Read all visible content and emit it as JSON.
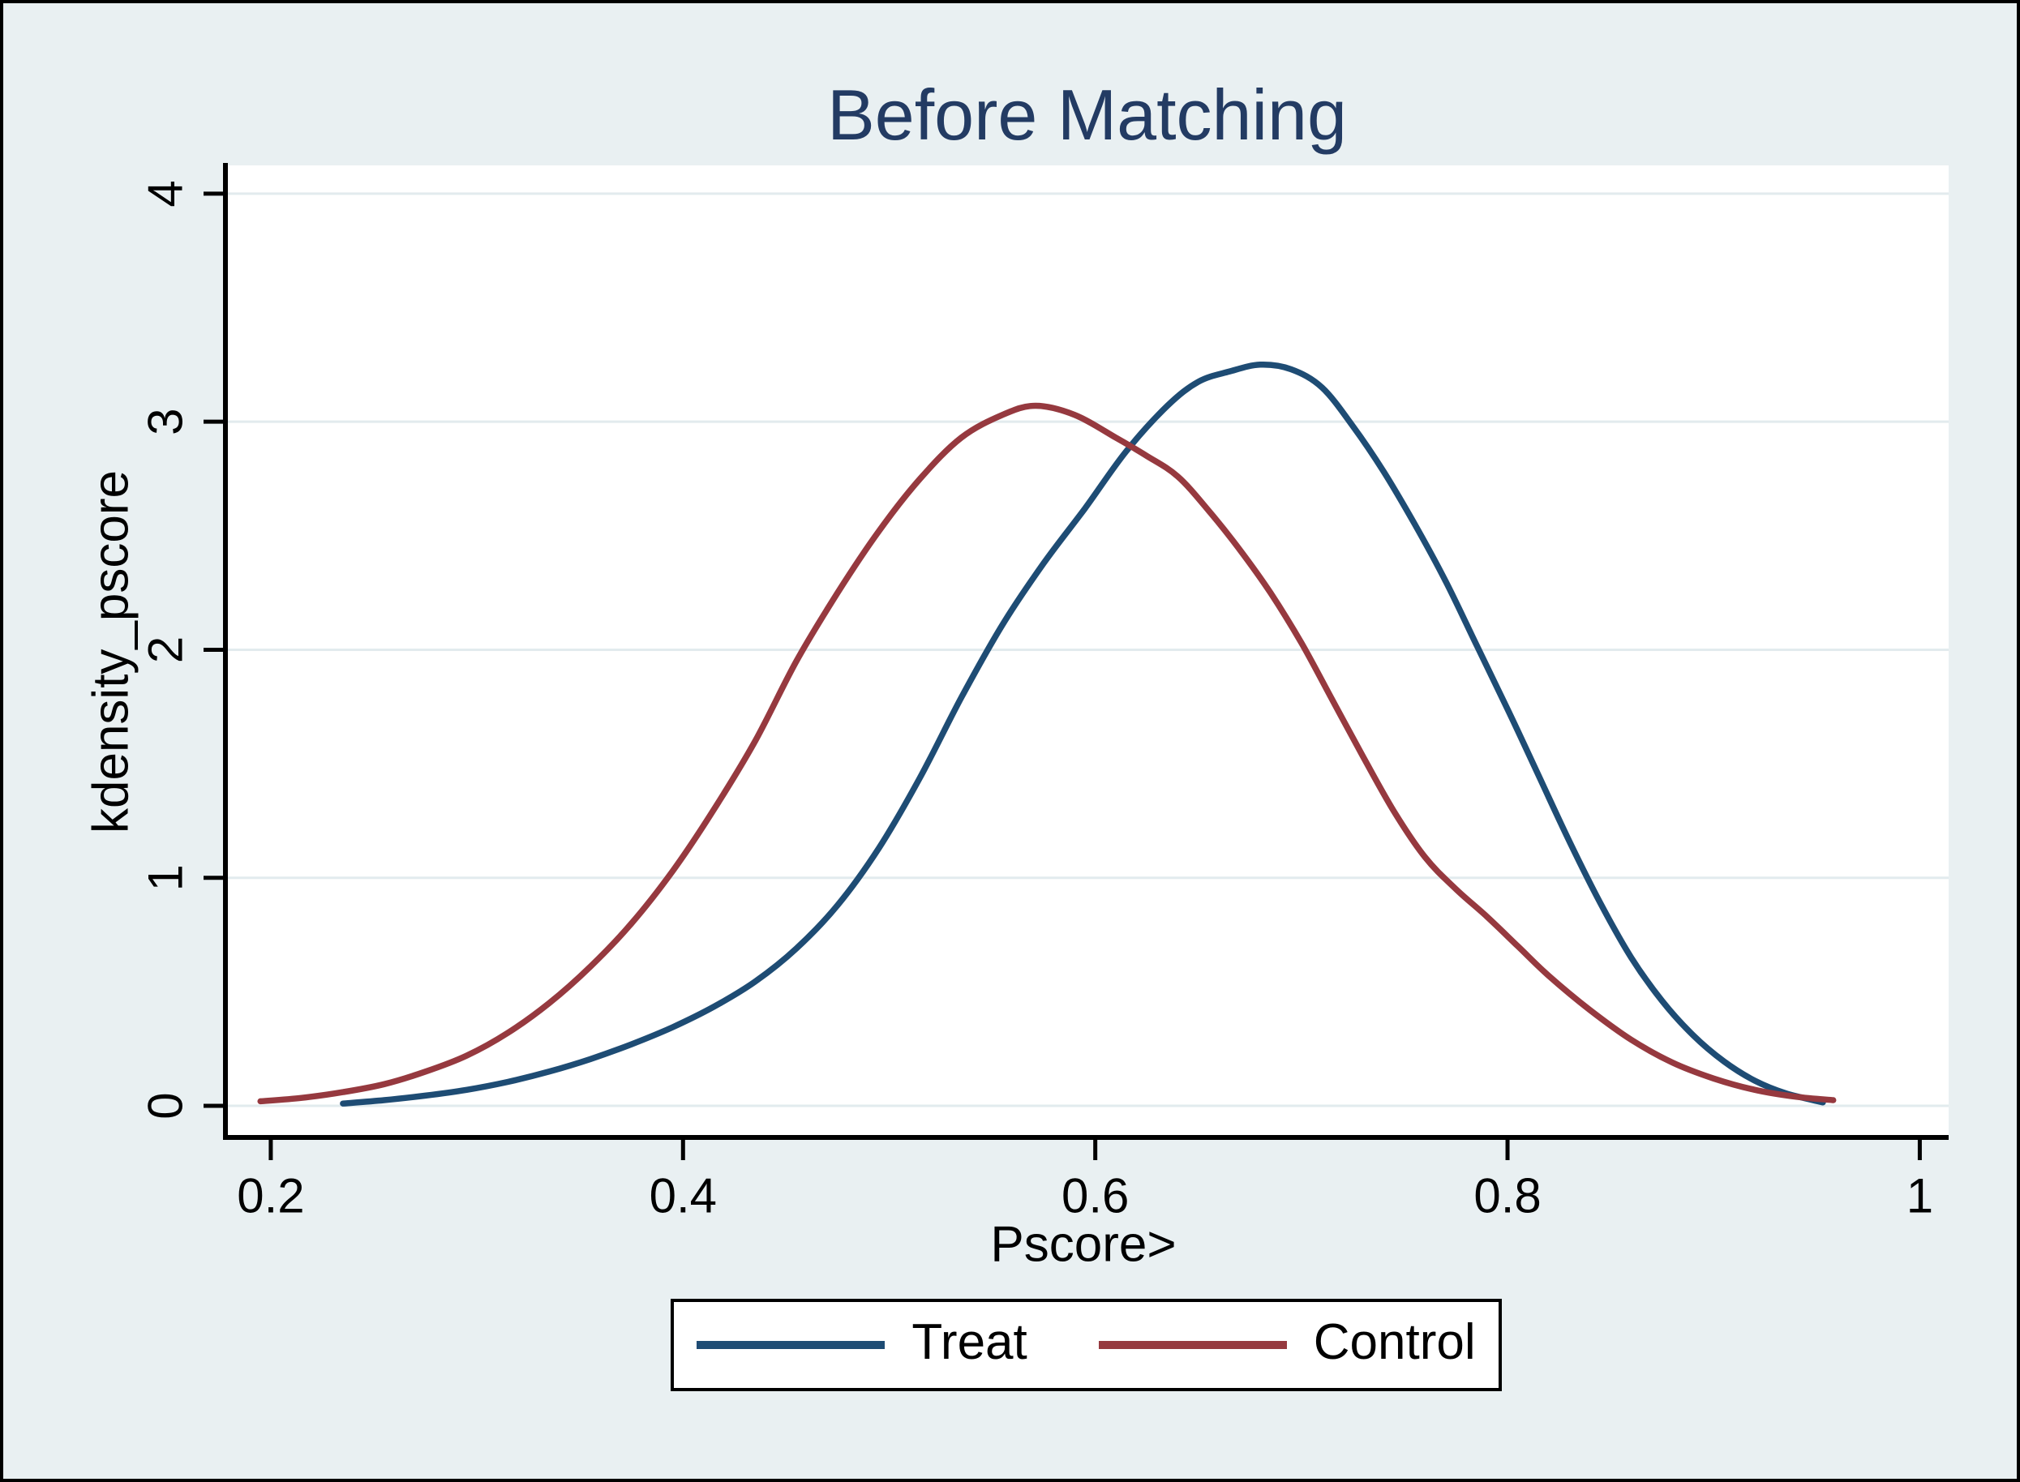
{
  "figure": {
    "background": "#e9f0f2",
    "plot_bg": "#ffffff",
    "grid_color": "#e2ebee",
    "axis_color": "#000000",
    "title_color": "#233b63",
    "text_color": "#000000"
  },
  "chart_data": {
    "type": "line",
    "title": "Before Matching",
    "xlabel": "Pscore>",
    "ylabel": "kdensity_pscore",
    "xlim": [
      0.178,
      1.014
    ],
    "ylim": [
      -0.135,
      4.124
    ],
    "x_ticks": [
      0.2,
      0.4,
      0.6,
      0.8,
      1
    ],
    "x_tick_labels": [
      "0.2",
      "0.4",
      "0.6",
      "0.8",
      "1"
    ],
    "y_ticks": [
      0,
      1,
      2,
      3,
      4
    ],
    "y_tick_labels": [
      "0",
      "1",
      "2",
      "3",
      "4"
    ],
    "grid": true,
    "legend_position": "bottom-center",
    "series": [
      {
        "name": "Treat",
        "color": "#1e4c74",
        "points": [
          [
            0.235,
            0.01
          ],
          [
            0.255,
            0.025
          ],
          [
            0.275,
            0.045
          ],
          [
            0.295,
            0.07
          ],
          [
            0.315,
            0.105
          ],
          [
            0.335,
            0.15
          ],
          [
            0.355,
            0.205
          ],
          [
            0.375,
            0.27
          ],
          [
            0.395,
            0.345
          ],
          [
            0.415,
            0.435
          ],
          [
            0.435,
            0.545
          ],
          [
            0.455,
            0.69
          ],
          [
            0.475,
            0.88
          ],
          [
            0.495,
            1.13
          ],
          [
            0.515,
            1.44
          ],
          [
            0.535,
            1.79
          ],
          [
            0.555,
            2.11
          ],
          [
            0.575,
            2.38
          ],
          [
            0.595,
            2.62
          ],
          [
            0.615,
            2.87
          ],
          [
            0.635,
            3.07
          ],
          [
            0.65,
            3.175
          ],
          [
            0.665,
            3.22
          ],
          [
            0.68,
            3.25
          ],
          [
            0.695,
            3.23
          ],
          [
            0.71,
            3.15
          ],
          [
            0.725,
            2.98
          ],
          [
            0.74,
            2.78
          ],
          [
            0.755,
            2.55
          ],
          [
            0.77,
            2.3
          ],
          [
            0.785,
            2.02
          ],
          [
            0.8,
            1.74
          ],
          [
            0.815,
            1.45
          ],
          [
            0.83,
            1.16
          ],
          [
            0.845,
            0.89
          ],
          [
            0.86,
            0.65
          ],
          [
            0.875,
            0.46
          ],
          [
            0.89,
            0.31
          ],
          [
            0.905,
            0.195
          ],
          [
            0.92,
            0.11
          ],
          [
            0.935,
            0.055
          ],
          [
            0.953,
            0.015
          ]
        ]
      },
      {
        "name": "Control",
        "color": "#96393f",
        "points": [
          [
            0.195,
            0.02
          ],
          [
            0.215,
            0.035
          ],
          [
            0.235,
            0.06
          ],
          [
            0.255,
            0.095
          ],
          [
            0.275,
            0.15
          ],
          [
            0.295,
            0.22
          ],
          [
            0.315,
            0.32
          ],
          [
            0.335,
            0.45
          ],
          [
            0.355,
            0.61
          ],
          [
            0.375,
            0.8
          ],
          [
            0.395,
            1.03
          ],
          [
            0.415,
            1.3
          ],
          [
            0.435,
            1.6
          ],
          [
            0.455,
            1.95
          ],
          [
            0.475,
            2.25
          ],
          [
            0.495,
            2.52
          ],
          [
            0.515,
            2.75
          ],
          [
            0.535,
            2.93
          ],
          [
            0.555,
            3.03
          ],
          [
            0.571,
            3.07
          ],
          [
            0.59,
            3.03
          ],
          [
            0.61,
            2.93
          ],
          [
            0.625,
            2.85
          ],
          [
            0.64,
            2.76
          ],
          [
            0.655,
            2.61
          ],
          [
            0.67,
            2.44
          ],
          [
            0.685,
            2.25
          ],
          [
            0.7,
            2.03
          ],
          [
            0.715,
            1.78
          ],
          [
            0.73,
            1.53
          ],
          [
            0.745,
            1.29
          ],
          [
            0.76,
            1.09
          ],
          [
            0.775,
            0.95
          ],
          [
            0.79,
            0.83
          ],
          [
            0.805,
            0.7
          ],
          [
            0.82,
            0.57
          ],
          [
            0.84,
            0.42
          ],
          [
            0.86,
            0.29
          ],
          [
            0.88,
            0.19
          ],
          [
            0.9,
            0.12
          ],
          [
            0.92,
            0.07
          ],
          [
            0.94,
            0.04
          ],
          [
            0.958,
            0.025
          ]
        ]
      }
    ]
  },
  "legend": {
    "items": [
      {
        "label": "Treat",
        "color": "#1e4c74"
      },
      {
        "label": "Control",
        "color": "#96393f"
      }
    ]
  }
}
